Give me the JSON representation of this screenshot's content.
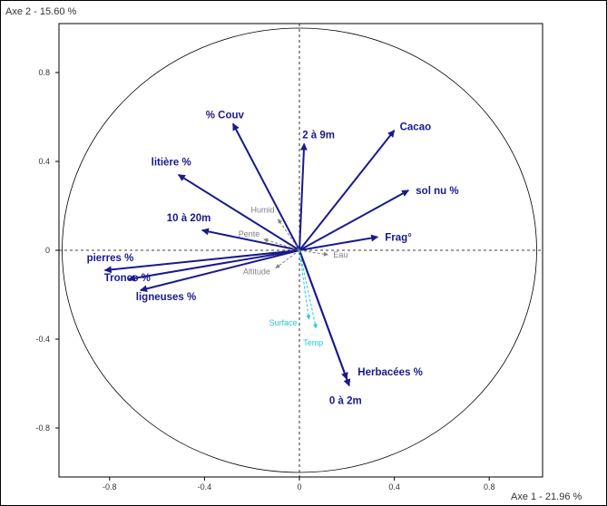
{
  "chart_data": {
    "type": "pca-correlation-circle",
    "x_axis_label": "Axe 1  -  21.96 %",
    "y_axis_label": "Axe 2  -  15.60 %",
    "xlim": [
      -1.0,
      1.0
    ],
    "ylim": [
      -1.0,
      1.0
    ],
    "x_ticks": [
      -0.8,
      -0.4,
      0,
      0.4,
      0.8
    ],
    "y_ticks": [
      0.8,
      0.4,
      0,
      -0.4,
      -0.8
    ],
    "x_tick_labels": [
      "-0.8",
      "-0.4",
      "0",
      "0.4",
      "0.8"
    ],
    "y_tick_labels": [
      "0.8",
      "0.4",
      "0",
      "-0.4",
      "-0.8"
    ],
    "unit_circle": true,
    "active_color": "#1a1a8c",
    "passive_grey_color": "#808080",
    "passive_cyan_color": "#20c8e0",
    "variables": [
      {
        "name": "% Couv",
        "x": -0.28,
        "y": 0.57,
        "group": "active"
      },
      {
        "name": "2 à 9m",
        "x": 0.02,
        "y": 0.48,
        "group": "active"
      },
      {
        "name": "Cacao",
        "x": 0.4,
        "y": 0.54,
        "group": "active"
      },
      {
        "name": "litière %",
        "x": -0.51,
        "y": 0.34,
        "group": "active"
      },
      {
        "name": "sol nu %",
        "x": 0.46,
        "y": 0.27,
        "group": "active"
      },
      {
        "name": "10 à 20m",
        "x": -0.41,
        "y": 0.09,
        "group": "active"
      },
      {
        "name": "Frag°",
        "x": 0.33,
        "y": 0.06,
        "group": "active"
      },
      {
        "name": "pierres %",
        "x": -0.82,
        "y": -0.09,
        "group": "active"
      },
      {
        "name": "Troncs %",
        "x": -0.72,
        "y": -0.13,
        "group": "active"
      },
      {
        "name": "ligneuses %",
        "x": -0.67,
        "y": -0.18,
        "group": "active"
      },
      {
        "name": "Herbacées %",
        "x": 0.2,
        "y": -0.58,
        "group": "active"
      },
      {
        "name": "0 à 2m",
        "x": 0.21,
        "y": -0.61,
        "group": "active"
      },
      {
        "name": "Humid",
        "x": -0.09,
        "y": 0.14,
        "group": "passive-grey"
      },
      {
        "name": "Pente",
        "x": -0.15,
        "y": 0.05,
        "group": "passive-grey"
      },
      {
        "name": "Eau",
        "x": 0.12,
        "y": -0.02,
        "group": "passive-grey"
      },
      {
        "name": "Altitude",
        "x": -0.1,
        "y": -0.08,
        "group": "passive-grey"
      },
      {
        "name": "Surface",
        "x": 0.04,
        "y": -0.31,
        "group": "passive-cyan"
      },
      {
        "name": "Temp",
        "x": 0.07,
        "y": -0.35,
        "group": "passive-cyan"
      }
    ]
  }
}
